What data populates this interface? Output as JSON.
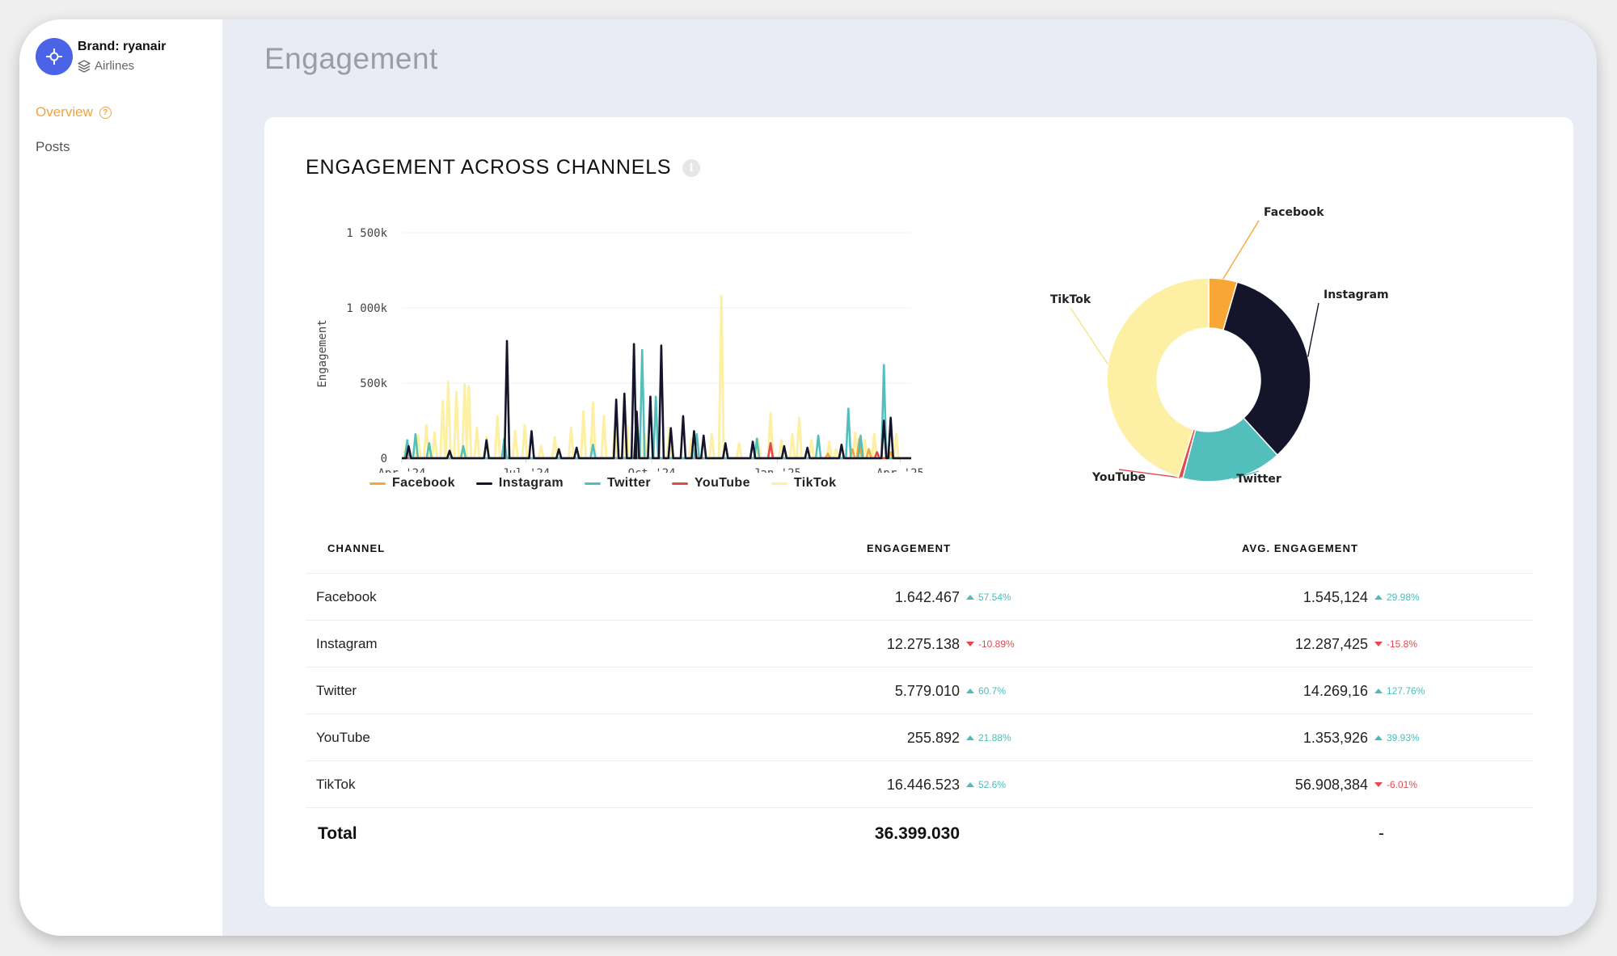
{
  "sidebar": {
    "brand_name": "Brand: ryanair",
    "brand_category": "Airlines",
    "nav": [
      {
        "label": "Overview",
        "active": true
      },
      {
        "label": "Posts",
        "active": false
      }
    ]
  },
  "page_title": "Engagement",
  "card": {
    "title": "ENGAGEMENT ACROSS CHANNELS"
  },
  "colors": {
    "Facebook": "#f8a736",
    "Instagram": "#14142b",
    "Twitter": "#53bfbd",
    "YouTube": "#e54848",
    "TikTok": "#fdf0a4",
    "accent": "#f2a33a",
    "brand_logo": "#4a63e7"
  },
  "chart_data": [
    {
      "type": "line",
      "ylabel": "Engagement",
      "y_ticks": [
        "0",
        "500k",
        "1 000k",
        "1 500k"
      ],
      "y_tick_values": [
        0,
        500000,
        1000000,
        1500000
      ],
      "ylim": [
        0,
        1500000
      ],
      "x_ticks": [
        "Apr '24",
        "Jul '24",
        "Oct '24",
        "Jan '25",
        "Apr '25"
      ],
      "x_tick_days": [
        0,
        91,
        183,
        275,
        365
      ],
      "xlim_days": [
        0,
        373
      ],
      "grid": true,
      "legend_position": "bottom",
      "series": [
        {
          "name": "Facebook",
          "peaks": [
            [
              312,
              30000
            ],
            [
              330,
              60000
            ],
            [
              335,
              130000
            ],
            [
              342,
              60000
            ],
            [
              358,
              40000
            ]
          ]
        },
        {
          "name": "Instagram",
          "peaks": [
            [
              5,
              80000
            ],
            [
              35,
              50000
            ],
            [
              62,
              120000
            ],
            [
              77,
              780000
            ],
            [
              95,
              180000
            ],
            [
              115,
              60000
            ],
            [
              128,
              70000
            ],
            [
              157,
              390000
            ],
            [
              163,
              430000
            ],
            [
              170,
              760000
            ],
            [
              172,
              310000
            ],
            [
              182,
              410000
            ],
            [
              190,
              750000
            ],
            [
              197,
              200000
            ],
            [
              206,
              280000
            ],
            [
              214,
              180000
            ],
            [
              221,
              150000
            ],
            [
              237,
              100000
            ],
            [
              257,
              110000
            ],
            [
              280,
              80000
            ],
            [
              297,
              70000
            ],
            [
              322,
              90000
            ],
            [
              353,
              250000
            ],
            [
              358,
              270000
            ]
          ]
        },
        {
          "name": "Twitter",
          "peaks": [
            [
              4,
              120000
            ],
            [
              10,
              160000
            ],
            [
              20,
              100000
            ],
            [
              45,
              80000
            ],
            [
              75,
              130000
            ],
            [
              140,
              90000
            ],
            [
              176,
              720000
            ],
            [
              186,
              410000
            ],
            [
              216,
              160000
            ],
            [
              260,
              130000
            ],
            [
              305,
              150000
            ],
            [
              327,
              330000
            ],
            [
              336,
              150000
            ],
            [
              353,
              620000
            ]
          ]
        },
        {
          "name": "YouTube",
          "peaks": [
            [
              270,
              100000
            ],
            [
              348,
              40000
            ]
          ]
        },
        {
          "name": "TikTok",
          "peaks": [
            [
              3,
              80000
            ],
            [
              12,
              150000
            ],
            [
              18,
              220000
            ],
            [
              24,
              170000
            ],
            [
              30,
              380000
            ],
            [
              34,
              510000
            ],
            [
              40,
              440000
            ],
            [
              46,
              490000
            ],
            [
              49,
              480000
            ],
            [
              55,
              200000
            ],
            [
              62,
              140000
            ],
            [
              70,
              280000
            ],
            [
              83,
              180000
            ],
            [
              90,
              220000
            ],
            [
              102,
              80000
            ],
            [
              112,
              140000
            ],
            [
              124,
              200000
            ],
            [
              133,
              310000
            ],
            [
              140,
              370000
            ],
            [
              148,
              280000
            ],
            [
              156,
              190000
            ],
            [
              165,
              220000
            ],
            [
              178,
              160000
            ],
            [
              196,
              200000
            ],
            [
              212,
              130000
            ],
            [
              227,
              160000
            ],
            [
              234,
              1080000
            ],
            [
              247,
              100000
            ],
            [
              261,
              130000
            ],
            [
              270,
              300000
            ],
            [
              278,
              120000
            ],
            [
              286,
              160000
            ],
            [
              291,
              270000
            ],
            [
              300,
              120000
            ],
            [
              313,
              110000
            ],
            [
              318,
              60000
            ],
            [
              332,
              170000
            ],
            [
              339,
              120000
            ],
            [
              346,
              160000
            ],
            [
              356,
              80000
            ],
            [
              362,
              160000
            ]
          ]
        }
      ]
    },
    {
      "type": "pie",
      "style": "donut",
      "labels": [
        "Facebook",
        "Instagram",
        "Twitter",
        "YouTube",
        "TikTok"
      ],
      "values": [
        1642467,
        12275138,
        5779010,
        255892,
        16446523
      ]
    }
  ],
  "table": {
    "headers": {
      "channel": "CHANNEL",
      "engagement": "ENGAGEMENT",
      "avg": "AVG. ENGAGEMENT"
    },
    "rows": [
      {
        "channel": "Facebook",
        "engagement": "1.642.467",
        "eng_change": "57.54%",
        "eng_dir": "up",
        "avg": "1.545,124",
        "avg_change": "29.98%",
        "avg_dir": "up"
      },
      {
        "channel": "Instagram",
        "engagement": "12.275.138",
        "eng_change": "-10.89%",
        "eng_dir": "down",
        "avg": "12.287,425",
        "avg_change": "-15.8%",
        "avg_dir": "down"
      },
      {
        "channel": "Twitter",
        "engagement": "5.779.010",
        "eng_change": "60.7%",
        "eng_dir": "up",
        "avg": "14.269,16",
        "avg_change": "127.76%",
        "avg_dir": "up"
      },
      {
        "channel": "YouTube",
        "engagement": "255.892",
        "eng_change": "21.88%",
        "eng_dir": "up",
        "avg": "1.353,926",
        "avg_change": "39.93%",
        "avg_dir": "up"
      },
      {
        "channel": "TikTok",
        "engagement": "16.446.523",
        "eng_change": "52.6%",
        "eng_dir": "up",
        "avg": "56.908,384",
        "avg_change": "-6.01%",
        "avg_dir": "down"
      }
    ],
    "total": {
      "label": "Total",
      "engagement": "36.399.030",
      "avg": "-"
    }
  }
}
